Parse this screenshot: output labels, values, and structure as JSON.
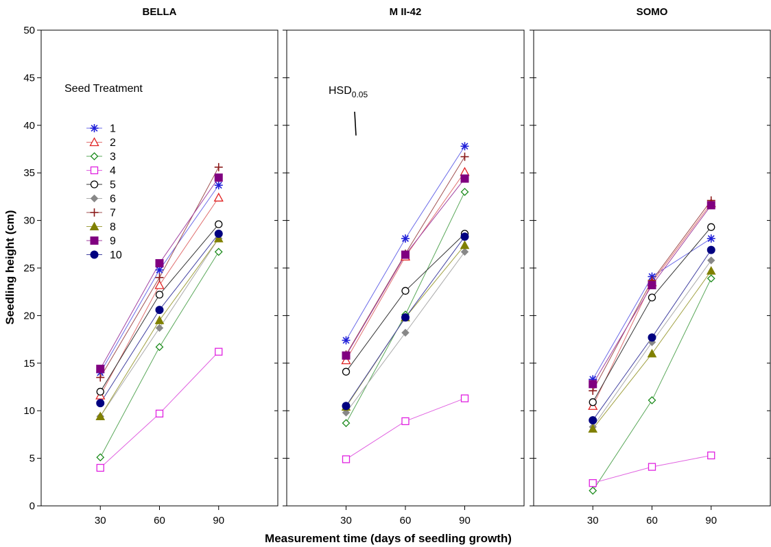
{
  "chart_data": {
    "type": "line",
    "xlabel": "Measurement time (days of seedling growth)",
    "ylabel": "Seedling height (cm)",
    "x": [
      30,
      60,
      90
    ],
    "x_ticks": [
      "30",
      "60",
      "90"
    ],
    "ylim": [
      0,
      50
    ],
    "y_ticks": [
      "0",
      "5",
      "10",
      "15",
      "20",
      "25",
      "30",
      "35",
      "40",
      "45",
      "50"
    ],
    "grid": false,
    "legend": {
      "title": "Seed Treatment",
      "placement": "upper-left of first panel",
      "entries": [
        "1",
        "2",
        "3",
        "4",
        "5",
        "6",
        "7",
        "8",
        "9",
        "10"
      ]
    },
    "hsd": {
      "label_main": "HSD",
      "label_sub": "0.05",
      "value": 2.5
    },
    "series_styles": [
      {
        "name": "1",
        "color": "#1f1fd8",
        "line": "#6a6ae8",
        "marker": "asterisk"
      },
      {
        "name": "2",
        "color": "#e02020",
        "line": "#e07070",
        "marker": "triangle-open"
      },
      {
        "name": "3",
        "color": "#1a8a1a",
        "line": "#5aa85a",
        "marker": "diamond-open"
      },
      {
        "name": "4",
        "color": "#e020e0",
        "line": "#e060e0",
        "marker": "square-open"
      },
      {
        "name": "5",
        "color": "#000000",
        "line": "#333333",
        "marker": "circle-open"
      },
      {
        "name": "6",
        "color": "#888888",
        "line": "#aaaaaa",
        "marker": "diamond-filled"
      },
      {
        "name": "7",
        "color": "#8b1a1a",
        "line": "#a05050",
        "marker": "plus"
      },
      {
        "name": "8",
        "color": "#808000",
        "line": "#a0a040",
        "marker": "triangle-filled"
      },
      {
        "name": "9",
        "color": "#800080",
        "line": "#a040a0",
        "marker": "square-filled"
      },
      {
        "name": "10",
        "color": "#000080",
        "line": "#4040a0",
        "marker": "circle-filled"
      }
    ],
    "panels": [
      {
        "title": "BELLA",
        "series": [
          {
            "name": "1",
            "values": [
              14.0,
              24.8,
              33.7
            ]
          },
          {
            "name": "2",
            "values": [
              11.6,
              23.2,
              32.4
            ]
          },
          {
            "name": "3",
            "values": [
              5.1,
              16.7,
              26.7
            ]
          },
          {
            "name": "4",
            "values": [
              4.0,
              9.7,
              16.2
            ]
          },
          {
            "name": "5",
            "values": [
              12.0,
              22.2,
              29.6
            ]
          },
          {
            "name": "6",
            "values": [
              9.4,
              18.7,
              28.1
            ]
          },
          {
            "name": "7",
            "values": [
              13.5,
              24.0,
              35.6
            ]
          },
          {
            "name": "8",
            "values": [
              9.4,
              19.5,
              28.1
            ]
          },
          {
            "name": "9",
            "values": [
              14.4,
              25.5,
              34.5
            ]
          },
          {
            "name": "10",
            "values": [
              10.8,
              20.6,
              28.6
            ]
          }
        ]
      },
      {
        "title": "M II-42",
        "series": [
          {
            "name": "1",
            "values": [
              17.4,
              28.1,
              37.8
            ]
          },
          {
            "name": "2",
            "values": [
              15.3,
              26.2,
              35.1
            ]
          },
          {
            "name": "3",
            "values": [
              8.7,
              20.1,
              33.0
            ]
          },
          {
            "name": "4",
            "values": [
              4.9,
              8.9,
              11.3
            ]
          },
          {
            "name": "5",
            "values": [
              14.1,
              22.6,
              28.6
            ]
          },
          {
            "name": "6",
            "values": [
              9.8,
              18.2,
              26.7
            ]
          },
          {
            "name": "7",
            "values": [
              15.9,
              26.5,
              36.7
            ]
          },
          {
            "name": "8",
            "values": [
              10.4,
              19.8,
              27.4
            ]
          },
          {
            "name": "9",
            "values": [
              15.8,
              26.4,
              34.4
            ]
          },
          {
            "name": "10",
            "values": [
              10.5,
              19.8,
              28.3
            ]
          }
        ]
      },
      {
        "title": "SOMO",
        "series": [
          {
            "name": "1",
            "values": [
              13.3,
              24.1,
              28.1
            ]
          },
          {
            "name": "2",
            "values": [
              10.5,
              23.5,
              31.8
            ]
          },
          {
            "name": "3",
            "values": [
              1.6,
              11.1,
              23.9
            ]
          },
          {
            "name": "4",
            "values": [
              2.4,
              4.1,
              5.3
            ]
          },
          {
            "name": "5",
            "values": [
              10.9,
              21.9,
              29.3
            ]
          },
          {
            "name": "6",
            "values": [
              8.3,
              17.2,
              25.8
            ]
          },
          {
            "name": "7",
            "values": [
              12.1,
              23.7,
              32.1
            ]
          },
          {
            "name": "8",
            "values": [
              8.1,
              16.0,
              24.7
            ]
          },
          {
            "name": "9",
            "values": [
              12.8,
              23.2,
              31.6
            ]
          },
          {
            "name": "10",
            "values": [
              9.0,
              17.7,
              26.9
            ]
          }
        ]
      }
    ]
  }
}
